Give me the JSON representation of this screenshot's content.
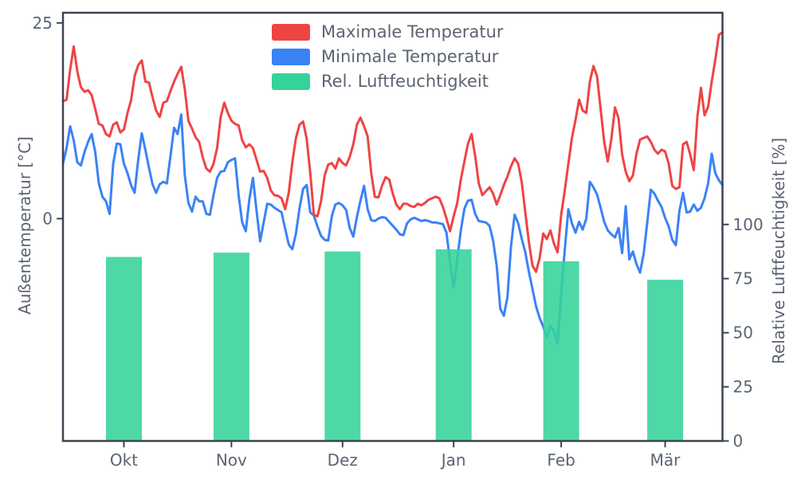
{
  "chart_data": {
    "type": "line+bar",
    "title": "",
    "x_axis": {
      "label": "",
      "tick_labels": [
        "Okt",
        "Nov",
        "Dez",
        "Jan",
        "Feb",
        "Mär"
      ],
      "tick_days": [
        17,
        47,
        78,
        109,
        139,
        168
      ],
      "domain_days": [
        0,
        184
      ],
      "note": "daily series from mid-September to mid-March"
    },
    "y_left": {
      "label": "Außentemperatur [°C]",
      "ticks": [
        0,
        25
      ],
      "range": [
        -28.4,
        26.3
      ]
    },
    "y_right": {
      "label": "Relative Luftfeuchtigkeit [%]",
      "ticks": [
        0,
        25,
        50,
        75,
        100
      ],
      "range": [
        0,
        197.8
      ]
    },
    "legend": [
      {
        "label": "Maximale Temperatur",
        "color": "#ef4444",
        "type": "line"
      },
      {
        "label": "Minimale Temperatur",
        "color": "#3b82f6",
        "type": "line"
      },
      {
        "label": "Rel. Luftfeuchtigkeit",
        "color": "#34d399",
        "type": "bar"
      }
    ],
    "series": [
      {
        "name": "Maximale Temperatur",
        "color": "#ef4444",
        "axis": "left",
        "values": [
          15.0,
          15.2,
          19.0,
          22.0,
          18.8,
          16.8,
          16.2,
          16.4,
          15.8,
          14.0,
          12.1,
          11.9,
          10.8,
          10.5,
          12.0,
          12.3,
          11.0,
          11.4,
          13.5,
          15.1,
          18.2,
          19.6,
          20.2,
          17.5,
          17.4,
          15.5,
          13.8,
          13.0,
          14.8,
          15.0,
          16.3,
          17.5,
          18.5,
          19.4,
          16.5,
          12.5,
          11.5,
          10.4,
          9.8,
          7.8,
          6.4,
          6.0,
          7.0,
          9.0,
          13.0,
          14.8,
          13.5,
          12.5,
          12.1,
          11.9,
          10.0,
          9.1,
          9.5,
          9.0,
          7.5,
          6.0,
          6.1,
          5.2,
          3.6,
          3.0,
          2.9,
          2.6,
          1.2,
          3.3,
          7.2,
          10.3,
          12.0,
          12.4,
          10.2,
          5.8,
          0.5,
          0.3,
          2.2,
          5.5,
          6.9,
          7.1,
          6.4,
          7.7,
          7.1,
          6.8,
          7.9,
          9.5,
          12.0,
          12.9,
          11.8,
          10.5,
          5.8,
          2.8,
          2.7,
          4.2,
          5.3,
          5.0,
          3.2,
          1.8,
          1.2,
          1.9,
          1.9,
          1.6,
          1.5,
          1.9,
          1.7,
          2.0,
          2.4,
          2.6,
          2.8,
          2.6,
          1.5,
          0.0,
          -1.6,
          0.3,
          2.0,
          5.0,
          7.3,
          9.6,
          10.8,
          8.0,
          4.5,
          3.0,
          3.5,
          4.0,
          3.2,
          1.8,
          3.0,
          4.3,
          5.4,
          6.7,
          7.7,
          7.0,
          4.6,
          0.8,
          -3.0,
          -6.0,
          -6.8,
          -5.0,
          -1.9,
          -2.6,
          -1.5,
          -3.2,
          -4.3,
          0.5,
          3.6,
          7.0,
          10.3,
          12.6,
          15.2,
          13.8,
          13.5,
          17.5,
          19.5,
          18.2,
          14.0,
          9.8,
          7.3,
          10.2,
          14.2,
          12.8,
          8.2,
          6.0,
          4.8,
          5.5,
          8.3,
          10.1,
          10.3,
          10.5,
          9.8,
          8.8,
          8.3,
          8.8,
          8.6,
          7.0,
          4.2,
          3.8,
          4.0,
          9.5,
          9.8,
          8.2,
          6.2,
          13.0,
          16.7,
          13.2,
          14.3,
          17.5,
          20.3,
          23.5,
          23.8
        ]
      },
      {
        "name": "Minimale Temperatur",
        "color": "#3b82f6",
        "axis": "left",
        "values": [
          7.0,
          9.0,
          11.8,
          10.0,
          7.2,
          6.8,
          8.5,
          9.8,
          10.8,
          8.5,
          4.5,
          2.8,
          2.2,
          0.6,
          7.0,
          9.6,
          9.5,
          7.0,
          5.8,
          4.3,
          3.3,
          7.5,
          10.9,
          8.8,
          6.5,
          4.4,
          3.3,
          4.4,
          4.7,
          4.5,
          8.0,
          11.6,
          10.8,
          13.3,
          5.5,
          2.0,
          0.9,
          2.8,
          2.2,
          2.2,
          0.6,
          0.5,
          3.0,
          5.2,
          6.0,
          6.1,
          7.2,
          7.5,
          7.7,
          3.0,
          -0.5,
          -1.6,
          2.5,
          5.2,
          1.0,
          -2.9,
          -0.5,
          1.9,
          1.8,
          1.4,
          1.1,
          0.8,
          -1.3,
          -3.3,
          -3.9,
          -1.9,
          1.3,
          3.8,
          4.3,
          0.8,
          0.4,
          -1.0,
          -2.2,
          -2.7,
          -2.8,
          0.3,
          1.8,
          2.0,
          1.7,
          1.1,
          -1.2,
          -2.3,
          0.2,
          2.3,
          4.2,
          1.2,
          -0.2,
          -0.3,
          0.0,
          0.2,
          0.1,
          -0.4,
          -0.9,
          -1.4,
          -2.0,
          -2.1,
          -0.6,
          -0.1,
          0.1,
          -0.1,
          -0.3,
          -0.2,
          -0.3,
          -0.5,
          -0.5,
          -0.6,
          -0.7,
          -1.8,
          -5.5,
          -8.8,
          -5.2,
          -1.5,
          1.3,
          2.3,
          2.4,
          0.6,
          -0.3,
          -0.4,
          -0.5,
          -0.9,
          -2.8,
          -6.0,
          -11.5,
          -12.4,
          -10.0,
          -3.5,
          0.5,
          -0.6,
          -2.6,
          -4.3,
          -6.8,
          -9.0,
          -11.2,
          -12.7,
          -13.8,
          -15.2,
          -13.7,
          -14.4,
          -16.0,
          -9.5,
          -4.0,
          1.2,
          -0.6,
          -1.8,
          -0.4,
          -1.4,
          0.0,
          4.7,
          4.0,
          3.1,
          1.4,
          -0.4,
          -1.5,
          -2.0,
          -2.4,
          -1.2,
          -4.4,
          1.6,
          -5.2,
          -4.2,
          -5.8,
          -6.9,
          -4.5,
          -0.5,
          3.7,
          3.2,
          2.3,
          1.5,
          0.1,
          -1.0,
          -2.7,
          -3.4,
          1.0,
          3.3,
          0.8,
          0.9,
          1.8,
          1.0,
          1.4,
          2.6,
          4.5,
          8.3,
          5.8,
          4.9,
          4.3
        ]
      }
    ],
    "bars": {
      "name": "Rel. Luftfeuchtigkeit",
      "color": "#34d399",
      "axis": "right",
      "categories": [
        "Okt",
        "Nov",
        "Dez",
        "Jan",
        "Feb",
        "Mär"
      ],
      "values": [
        85,
        87,
        87.5,
        88.5,
        83,
        74.5
      ],
      "width_days": 10,
      "opacity": 0.88
    }
  },
  "colors": {
    "spine": "#3b4450",
    "tick_text": "#5b6472",
    "background": "#ffffff"
  }
}
